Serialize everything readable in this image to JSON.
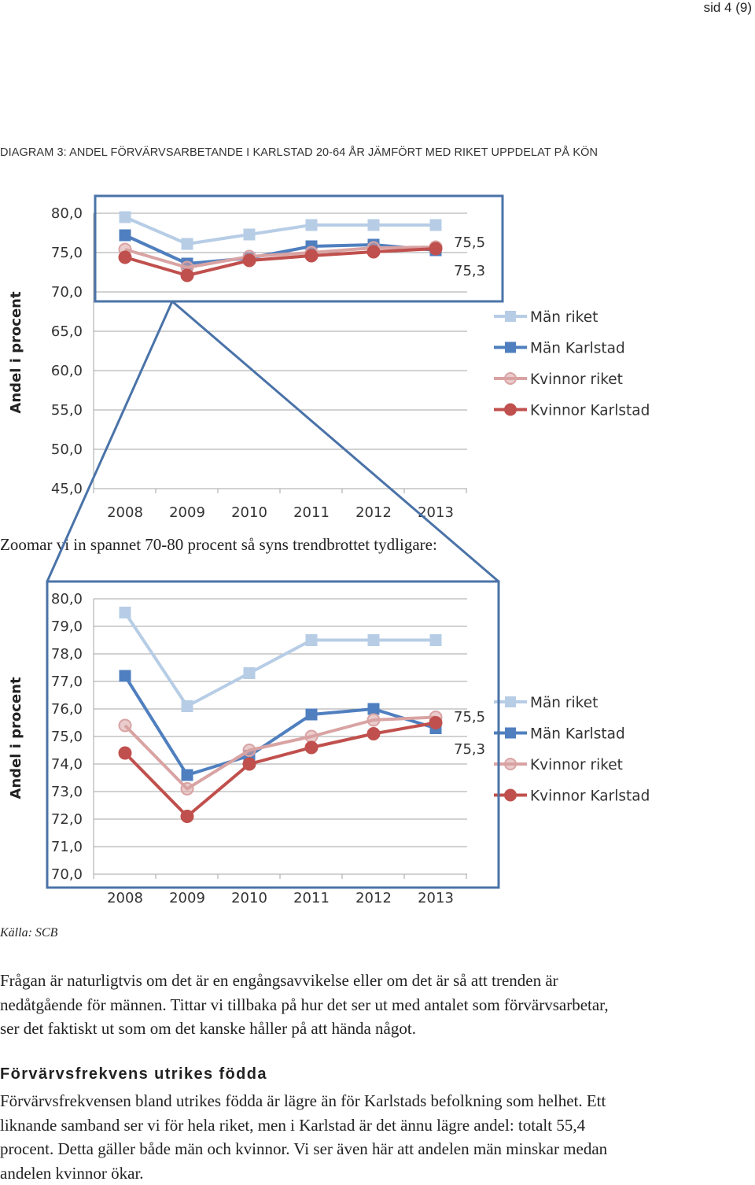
{
  "page": {
    "page_number": "sid 4 (9)"
  },
  "diagram_title": "DIAGRAM 3: ANDEL FÖRVÄRVSARBETANDE I KARLSTAD 20-64 ÅR JÄMFÖRT MED RIKET UPPDELAT PÅ KÖN",
  "zoom_text": "Zoomar vi in spannet 70-80 procent så syns trendbrottet tydligare:",
  "source": "Källa: SCB",
  "paragraph_1": "Frågan är naturligtvis om det är en engångsavvikelse eller om det är så att trenden är nedåtgående för männen. Tittar vi tillbaka på hur det ser ut med antalet som förvärvsarbetar, ser det faktiskt ut som om det kanske håller på att hända något.",
  "heading": "Förvärvsfrekvens utrikes födda",
  "paragraph_2": "Förvärvsfrekvensen bland utrikes födda är lägre än för Karlstads befolkning som helhet. Ett liknande samband ser vi för hela riket, men i Karlstad är det ännu lägre andel: totalt 55,4 procent. Detta gäller både män och kvinnor. Vi ser även här att andelen män minskar medan andelen kvinnor ökar.",
  "colors": {
    "man_riket": "#b7cde6",
    "man_karlstad": "#4f7fbf",
    "kvinnor_riket": "#d9a3a3",
    "kvinnor_karlstad": "#c0504d",
    "zoom_frame": "#4a73a8",
    "axis": "#a6a6a6"
  },
  "chart_data": [
    {
      "type": "line",
      "ylabel": "Andel i procent",
      "ylim": [
        45,
        80
      ],
      "y_ticks": [
        "80,0",
        "75,0",
        "70,0",
        "65,0",
        "60,0",
        "55,0",
        "50,0",
        "45,0"
      ],
      "x": [
        "2008",
        "2009",
        "2010",
        "2011",
        "2012",
        "2013"
      ],
      "series": [
        {
          "name": "Män riket",
          "values": [
            79.5,
            76.1,
            77.3,
            78.5,
            78.5,
            78.5
          ]
        },
        {
          "name": "Män Karlstad",
          "values": [
            77.2,
            73.6,
            74.3,
            75.8,
            76.0,
            75.3
          ]
        },
        {
          "name": "Kvinnor riket",
          "values": [
            75.4,
            73.1,
            74.5,
            75.0,
            75.6,
            75.7
          ]
        },
        {
          "name": "Kvinnor Karlstad",
          "values": [
            74.4,
            72.1,
            74.0,
            74.6,
            75.1,
            75.5
          ]
        }
      ],
      "annotations": [
        "75,5",
        "75,3"
      ],
      "legend": "right",
      "grid": true
    },
    {
      "type": "line",
      "ylabel": "Andel i procent",
      "ylim": [
        70,
        80
      ],
      "y_ticks": [
        "80,0",
        "79,0",
        "78,0",
        "77,0",
        "76,0",
        "75,0",
        "74,0",
        "73,0",
        "72,0",
        "71,0",
        "70,0"
      ],
      "x": [
        "2008",
        "2009",
        "2010",
        "2011",
        "2012",
        "2013"
      ],
      "series": [
        {
          "name": "Män riket",
          "values": [
            79.5,
            76.1,
            77.3,
            78.5,
            78.5,
            78.5
          ]
        },
        {
          "name": "Män Karlstad",
          "values": [
            77.2,
            73.6,
            74.3,
            75.8,
            76.0,
            75.3
          ]
        },
        {
          "name": "Kvinnor riket",
          "values": [
            75.4,
            73.1,
            74.5,
            75.0,
            75.6,
            75.7
          ]
        },
        {
          "name": "Kvinnor Karlstad",
          "values": [
            74.4,
            72.1,
            74.0,
            74.6,
            75.1,
            75.5
          ]
        }
      ],
      "annotations": [
        "75,5",
        "75,3"
      ],
      "legend": "right",
      "grid": true
    }
  ]
}
